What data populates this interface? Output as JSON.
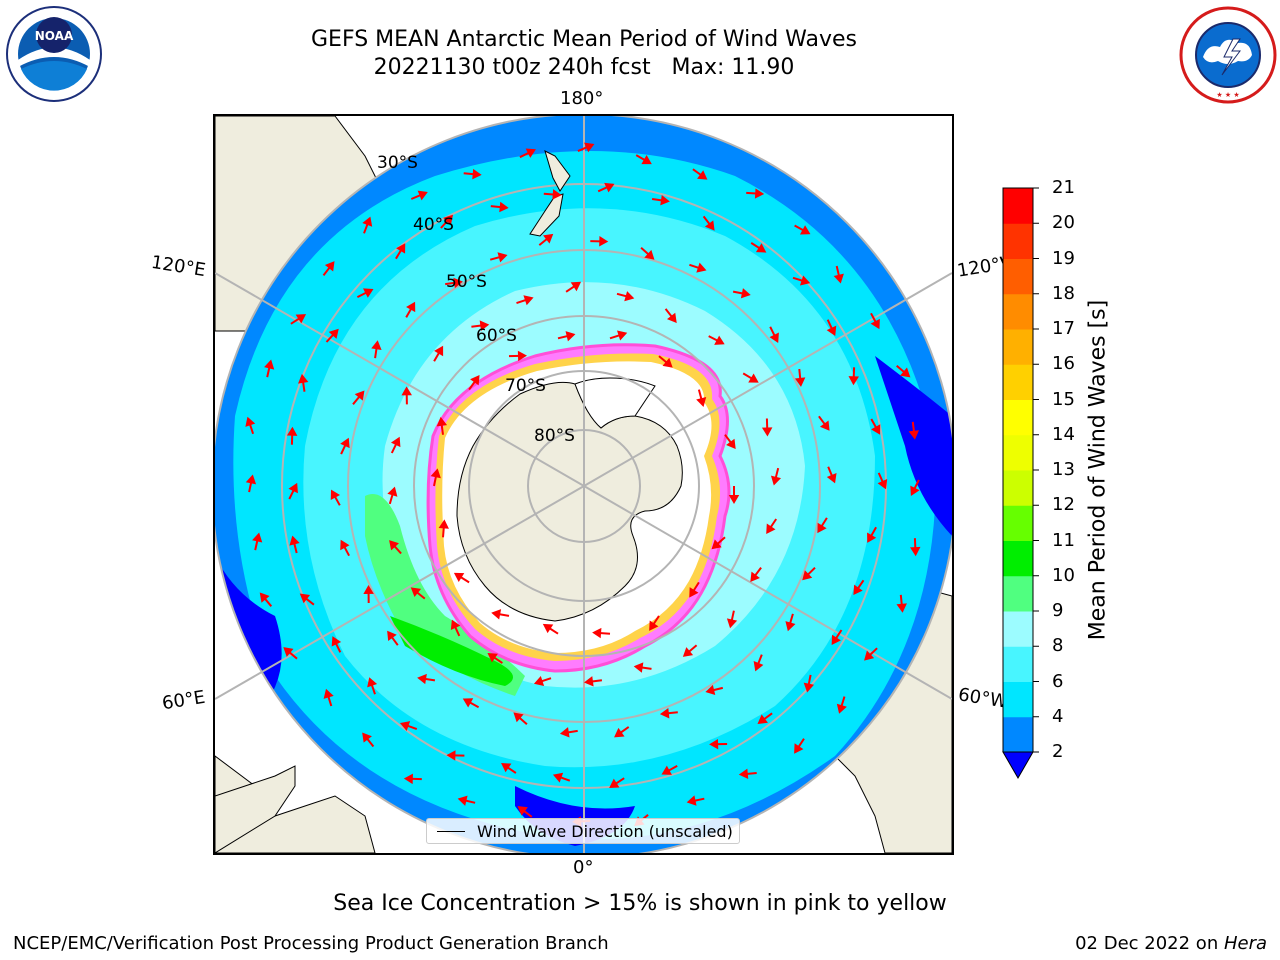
{
  "header": {
    "title": "GEFS MEAN Antarctic Mean Period of Wind Waves",
    "subtitle": "20221130 t00z 240h fcst   Max: 11.90"
  },
  "logos": {
    "left": "NOAA",
    "right": "NATIONAL WEATHER SERVICE"
  },
  "map": {
    "projection": "south-polar-stereographic",
    "lon_labels": {
      "top": "180°",
      "bottom": "0°",
      "upper_left": "120°E",
      "upper_right": "120°W",
      "lower_left": "60°E",
      "lower_right": "60°W"
    },
    "lat_labels": [
      "30°S",
      "40°S",
      "50°S",
      "60°S",
      "70°S",
      "80°S"
    ],
    "colors": {
      "land": "#efedde",
      "ice_free": "#ffffff",
      "sea_ice": "#ff7cff",
      "grid": "#b4b4b4"
    }
  },
  "colorbar": {
    "title": "Mean Period of Wind Waves [s]",
    "tick_labels": [
      "2",
      "4",
      "6",
      "8",
      "9",
      "10",
      "11",
      "12",
      "13",
      "14",
      "15",
      "16",
      "17",
      "18",
      "19",
      "20",
      "21"
    ],
    "colors": [
      "#0000ff",
      "#0088ff",
      "#00e6ff",
      "#48f5ff",
      "#9cfcff",
      "#50ff80",
      "#00ee00",
      "#66ff00",
      "#ccff00",
      "#eeff00",
      "#ffff00",
      "#ffd000",
      "#ffb000",
      "#ff8c00",
      "#ff5e00",
      "#ff3300",
      "#ff0000"
    ]
  },
  "legend": {
    "label": "Wind Wave Direction (unscaled)"
  },
  "note": "Sea Ice Concentration > 15% is shown in pink to yellow",
  "footer": {
    "left": "NCEP/EMC/Verification Post Processing Product Generation Branch",
    "right_date": "02 Dec 2022 on ",
    "right_host": "Hera"
  }
}
